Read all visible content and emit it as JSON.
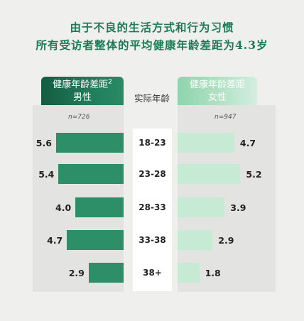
{
  "title_line1": "由于不良的生活方式和行为习惯",
  "title_line2": "所有受访者整体的平均健康年龄差距为4.3岁",
  "center_label": "实际年龄",
  "male": {
    "header_line1": "健康年龄差距",
    "header_sup": "2",
    "header_line2": "男性",
    "n": "n=726",
    "color": "#2c8f68"
  },
  "female": {
    "header_line1": "健康年龄差距",
    "header_line2": "女性",
    "n": "n=947",
    "color": "#c6ead3"
  },
  "chart_data": {
    "type": "bar",
    "orientation": "horizontal-butterfly",
    "categories": [
      "18-23",
      "23-28",
      "28-33",
      "33-38",
      "38+"
    ],
    "series": [
      {
        "name": "男性",
        "values": [
          5.6,
          5.4,
          4.0,
          4.7,
          2.9
        ]
      },
      {
        "name": "女性",
        "values": [
          4.7,
          5.2,
          3.9,
          2.9,
          1.8
        ]
      }
    ]
  }
}
